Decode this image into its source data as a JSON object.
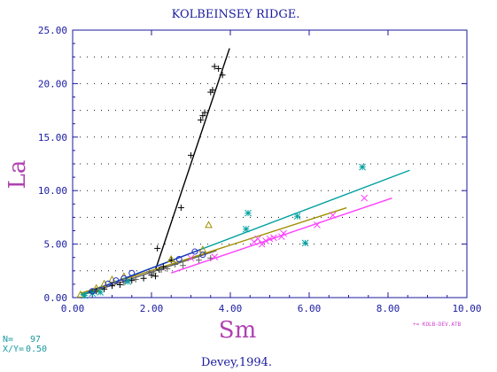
{
  "chart_data": {
    "type": "scatter",
    "title": "KOLBEINSEY RIDGE.",
    "xlabel": "Sm",
    "ylabel": "La",
    "xlim": [
      0,
      10
    ],
    "ylim": [
      0,
      25
    ],
    "xticks": [
      "0.00",
      "2.00",
      "4.00",
      "6.00",
      "8.00",
      "10.00"
    ],
    "yticks": [
      "0.00",
      "5.00",
      "10.00",
      "15.00",
      "20.00",
      "25.00"
    ],
    "grid": "dotted",
    "n_label": "N=",
    "n_value": "97",
    "xy_label": "X/Y=",
    "xy_value": "0.50",
    "source_file": "+= KOLB-DEV.ATB",
    "citation": "Devey,1994.",
    "colors": {
      "axis": "#1a1aa0",
      "black": "#000000",
      "olive": "#a09000",
      "teal": "#00a0a0",
      "magenta": "#ff40ff",
      "blue": "#2030c0",
      "label": "#b040b0"
    },
    "series": [
      {
        "marker": "plus",
        "color": "#000000",
        "points": [
          [
            2.15,
            4.6
          ],
          [
            2.2,
            2.6
          ],
          [
            2.3,
            2.9
          ],
          [
            2.5,
            3.5
          ],
          [
            2.75,
            8.4
          ],
          [
            3.0,
            13.3
          ],
          [
            3.25,
            16.6
          ],
          [
            3.3,
            17.0
          ],
          [
            3.35,
            17.3
          ],
          [
            3.5,
            19.2
          ],
          [
            3.55,
            19.4
          ],
          [
            3.6,
            21.6
          ],
          [
            3.8,
            20.8
          ],
          [
            3.7,
            21.4
          ],
          [
            2.1,
            2.0
          ],
          [
            2.0,
            2.1
          ],
          [
            1.8,
            1.8
          ],
          [
            1.5,
            1.6
          ],
          [
            1.2,
            1.2
          ],
          [
            1.0,
            1.1
          ],
          [
            0.8,
            0.8
          ],
          [
            0.6,
            0.6
          ],
          [
            0.5,
            0.5
          ]
        ],
        "fit": [
          [
            2.1,
            2.6
          ],
          [
            3.98,
            23.3
          ]
        ]
      },
      {
        "marker": "plus",
        "color": "#606060",
        "points": [
          [
            1.95,
            2.4
          ],
          [
            2.05,
            2.3
          ],
          [
            2.25,
            2.6
          ],
          [
            2.4,
            2.7
          ],
          [
            2.6,
            3.1
          ],
          [
            2.8,
            3.0
          ],
          [
            3.2,
            3.5
          ],
          [
            3.5,
            3.7
          ],
          [
            1.6,
            1.7
          ],
          [
            1.3,
            1.4
          ]
        ],
        "fit": [
          [
            0.3,
            0.3
          ],
          [
            3.65,
            4.4
          ]
        ]
      },
      {
        "marker": "triangle",
        "color": "#a09000",
        "points": [
          [
            0.2,
            0.3
          ],
          [
            0.6,
            0.9
          ],
          [
            0.8,
            1.3
          ],
          [
            1.0,
            1.7
          ],
          [
            1.3,
            2.0
          ],
          [
            2.5,
            3.6
          ],
          [
            3.3,
            4.5
          ],
          [
            3.45,
            6.8
          ]
        ],
        "fit": [
          [
            0.2,
            0.4
          ],
          [
            6.95,
            8.4
          ]
        ]
      },
      {
        "marker": "asterisk",
        "color": "#00a0a0",
        "points": [
          [
            0.3,
            0.2
          ],
          [
            0.5,
            0.4
          ],
          [
            0.7,
            0.5
          ],
          [
            1.4,
            1.5
          ],
          [
            4.45,
            7.9
          ],
          [
            4.4,
            6.4
          ],
          [
            5.7,
            7.6
          ],
          [
            5.9,
            5.1
          ],
          [
            7.35,
            12.2
          ]
        ],
        "fit": [
          [
            0.2,
            0.25
          ],
          [
            8.55,
            11.9
          ]
        ]
      },
      {
        "marker": "circle",
        "color": "#2030c0",
        "points": [
          [
            0.5,
            0.6
          ],
          [
            0.9,
            1.3
          ],
          [
            1.1,
            1.6
          ],
          [
            1.3,
            1.8
          ],
          [
            1.5,
            2.3
          ],
          [
            2.7,
            3.6
          ],
          [
            3.1,
            4.3
          ],
          [
            3.3,
            4.0
          ]
        ],
        "fit": [
          [
            0.4,
            0.5
          ],
          [
            3.25,
            4.5
          ]
        ]
      },
      {
        "marker": "cross",
        "color": "#ff40ff",
        "points": [
          [
            3.0,
            3.7
          ],
          [
            3.6,
            3.8
          ],
          [
            4.6,
            5.2
          ],
          [
            4.7,
            5.5
          ],
          [
            4.8,
            5.0
          ],
          [
            4.9,
            5.3
          ],
          [
            5.0,
            5.5
          ],
          [
            5.1,
            5.6
          ],
          [
            5.3,
            5.7
          ],
          [
            5.35,
            6.0
          ],
          [
            6.2,
            6.8
          ],
          [
            6.6,
            7.7
          ],
          [
            7.4,
            9.3
          ]
        ],
        "fit": [
          [
            2.5,
            2.3
          ],
          [
            8.1,
            9.3
          ]
        ]
      }
    ]
  }
}
